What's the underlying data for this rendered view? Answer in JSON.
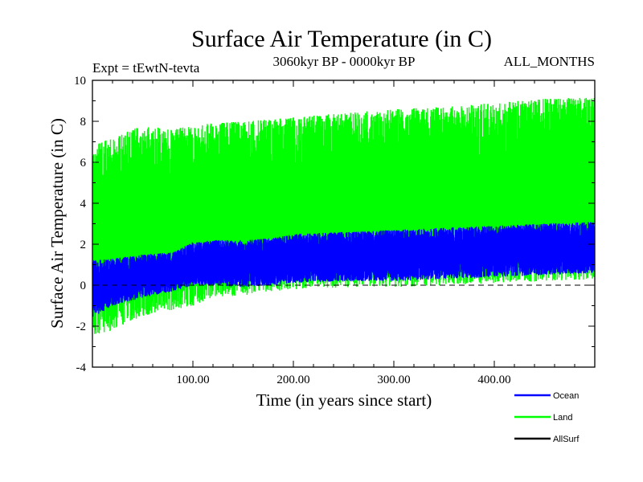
{
  "chart_data": {
    "type": "area",
    "title": "Surface Air Temperature (in C)",
    "subtitle_left": "Expt = tEwtN-tevta",
    "subtitle_center": "3060kyr BP - 0000kyr BP",
    "subtitle_right": "ALL_MONTHS",
    "xlabel": "Time (in years since start)",
    "ylabel": "Surface Air Temperature (in C)",
    "xlim": [
      0,
      500
    ],
    "ylim": [
      -4,
      10
    ],
    "x_ticks": [
      100,
      200,
      300,
      400
    ],
    "x_tick_labels": [
      "100.00",
      "200.00",
      "300.00",
      "400.00"
    ],
    "y_ticks": [
      -4,
      -2,
      0,
      2,
      4,
      6,
      8,
      10
    ],
    "y_tick_labels": [
      "-4",
      "-2",
      "0",
      "2",
      "4",
      "6",
      "8",
      "10"
    ],
    "reference_line": {
      "y": 0,
      "style": "dashed"
    },
    "series": [
      {
        "name": "Land",
        "color": "#00ff00",
        "x": [
          0,
          20,
          50,
          80,
          100,
          120,
          150,
          180,
          200,
          250,
          300,
          350,
          400,
          450,
          500
        ],
        "min": [
          -2.6,
          -2.2,
          -1.5,
          -1.2,
          -1.0,
          -0.6,
          -0.5,
          -0.3,
          -0.2,
          -0.1,
          -0.1,
          0.0,
          0.1,
          0.2,
          0.3
        ],
        "max": [
          6.8,
          7.2,
          7.8,
          7.6,
          7.8,
          7.9,
          8.0,
          8.1,
          8.2,
          8.4,
          8.6,
          8.7,
          8.9,
          9.1,
          9.2
        ]
      },
      {
        "name": "Ocean",
        "color": "#0000ff",
        "x": [
          0,
          20,
          50,
          80,
          100,
          120,
          150,
          180,
          200,
          250,
          300,
          350,
          400,
          450,
          500
        ],
        "min": [
          -1.6,
          -1.0,
          -0.6,
          -0.3,
          0.0,
          0.0,
          -0.1,
          0.0,
          0.1,
          0.2,
          0.2,
          0.3,
          0.4,
          0.5,
          0.6
        ],
        "max": [
          1.2,
          1.3,
          1.5,
          1.6,
          2.1,
          2.2,
          2.2,
          2.3,
          2.5,
          2.6,
          2.7,
          2.8,
          2.9,
          3.0,
          3.1
        ]
      },
      {
        "name": "AllSurf",
        "color": "#000000",
        "x": [],
        "min": [],
        "max": []
      }
    ],
    "legend": {
      "placement": "bottom-right",
      "entries": [
        {
          "label": "Ocean",
          "color": "#0000ff"
        },
        {
          "label": "Land",
          "color": "#00ff00"
        },
        {
          "label": "AllSurf",
          "color": "#000000"
        }
      ]
    }
  }
}
